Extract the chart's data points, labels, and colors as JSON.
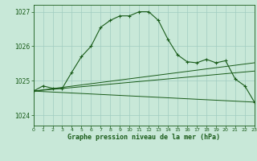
{
  "title": "Graphe pression niveau de la mer (hPa)",
  "background_color": "#c8e8d8",
  "grid_color": "#a0ccc0",
  "line_color": "#1a5c1a",
  "x_min": 0,
  "x_max": 23,
  "y_min": 1023.7,
  "y_max": 1027.2,
  "y_ticks": [
    1024,
    1025,
    1026,
    1027
  ],
  "x_ticks": [
    0,
    1,
    2,
    3,
    4,
    5,
    6,
    7,
    8,
    9,
    10,
    11,
    12,
    13,
    14,
    15,
    16,
    17,
    18,
    19,
    20,
    21,
    22,
    23
  ],
  "main_line": [
    [
      0,
      1024.7
    ],
    [
      1,
      1024.85
    ],
    [
      2,
      1024.78
    ],
    [
      3,
      1024.78
    ],
    [
      4,
      1025.25
    ],
    [
      5,
      1025.7
    ],
    [
      6,
      1026.0
    ],
    [
      7,
      1026.55
    ],
    [
      8,
      1026.75
    ],
    [
      9,
      1026.88
    ],
    [
      10,
      1026.88
    ],
    [
      11,
      1027.0
    ],
    [
      12,
      1027.0
    ],
    [
      13,
      1026.75
    ],
    [
      14,
      1026.2
    ],
    [
      15,
      1025.75
    ],
    [
      16,
      1025.55
    ],
    [
      17,
      1025.52
    ],
    [
      18,
      1025.62
    ],
    [
      19,
      1025.52
    ],
    [
      20,
      1025.58
    ],
    [
      21,
      1025.05
    ],
    [
      22,
      1024.85
    ],
    [
      23,
      1024.38
    ]
  ],
  "flat_line1": [
    [
      0,
      1024.7
    ],
    [
      23,
      1024.38
    ]
  ],
  "flat_line2": [
    [
      0,
      1024.7
    ],
    [
      23,
      1025.28
    ]
  ],
  "flat_line3": [
    [
      0,
      1024.7
    ],
    [
      23,
      1025.52
    ]
  ]
}
